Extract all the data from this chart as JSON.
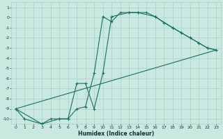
{
  "title": "",
  "xlabel": "Humidex (Indice chaleur)",
  "xlim": [
    -0.5,
    23.5
  ],
  "ylim": [
    -10.5,
    1.5
  ],
  "xticks": [
    0,
    1,
    2,
    3,
    4,
    5,
    6,
    7,
    8,
    9,
    10,
    11,
    12,
    13,
    14,
    15,
    16,
    17,
    18,
    19,
    20,
    21,
    22,
    23
  ],
  "yticks": [
    1,
    0,
    -1,
    -2,
    -3,
    -4,
    -5,
    -6,
    -7,
    -8,
    -9,
    -10
  ],
  "bg_color": "#c9e8e0",
  "grid_color": "#aacfc8",
  "line_color": "#1a7060",
  "line1_x": [
    0,
    1,
    3,
    4,
    5,
    6,
    7,
    8,
    9,
    10,
    11,
    12,
    13,
    14,
    15,
    16,
    17,
    18,
    19,
    20,
    21,
    22,
    23
  ],
  "line1_y": [
    -9,
    -10,
    -10.5,
    -10,
    -10,
    -10,
    -9,
    -8.8,
    -5.5,
    0.1,
    -0.4,
    0.5,
    0.5,
    0.5,
    0.5,
    0.1,
    -0.5,
    -1.0,
    -1.5,
    -2.0,
    -2.5,
    -3.0,
    -3.2
  ],
  "line2_x": [
    0,
    3,
    5,
    6,
    7,
    8,
    9,
    10,
    11,
    13,
    14,
    16,
    18,
    19,
    20,
    21,
    22,
    23
  ],
  "line2_y": [
    -9,
    -10.5,
    -10,
    -10,
    -6.5,
    -6.5,
    -9.0,
    -5.5,
    0.1,
    0.5,
    0.5,
    0.1,
    -1.0,
    -1.5,
    -2.0,
    -2.5,
    -3.0,
    -3.2
  ],
  "line3_x": [
    0,
    23
  ],
  "line3_y": [
    -9.0,
    -3.2
  ]
}
